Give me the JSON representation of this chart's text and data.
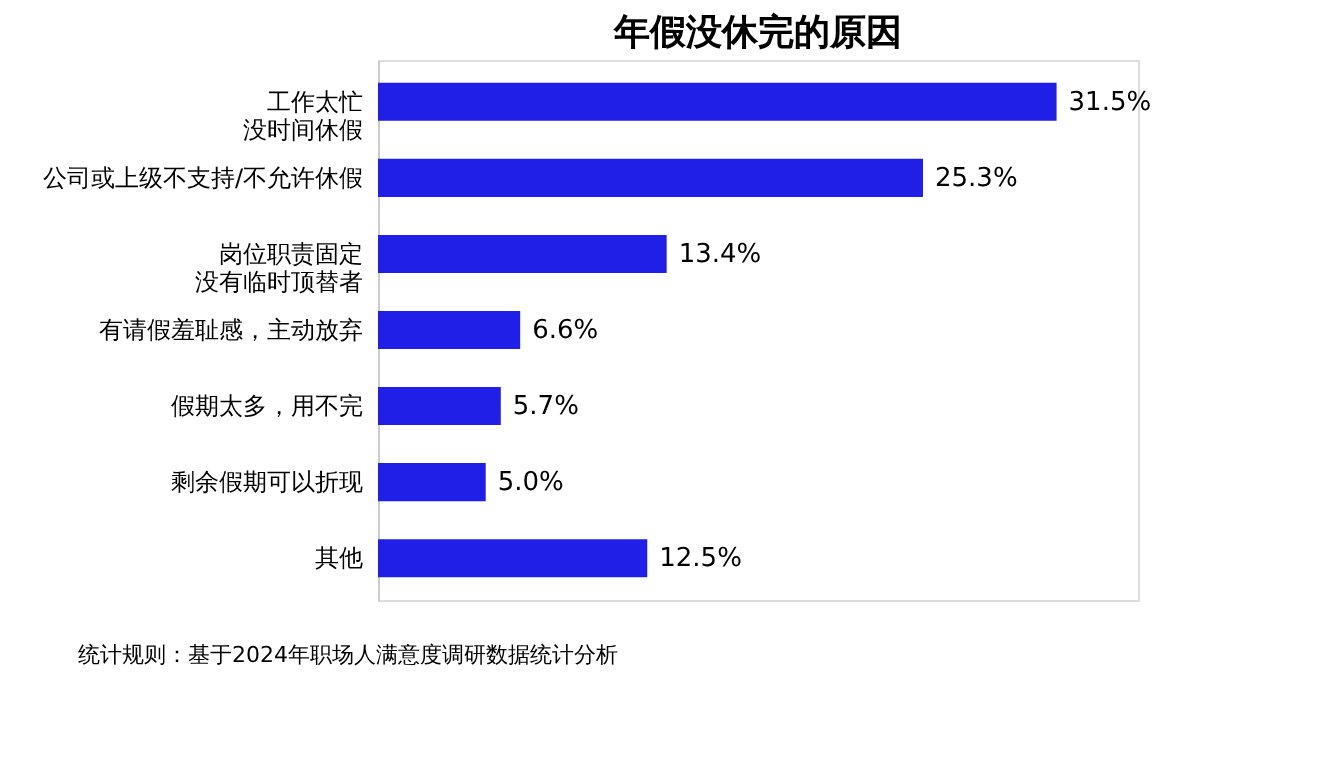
{
  "chart_data": {
    "type": "bar",
    "orientation": "horizontal",
    "title": "年假没休完的原因",
    "categories": [
      "工作太忙没时间休假",
      "公司或上级不支持/不允许休假",
      "岗位职责固定没有临时顶替者",
      "有请假羞耻感，主动放弃",
      "假期太多，用不完",
      "剩余假期可以折现",
      "其他"
    ],
    "values": [
      31.5,
      25.3,
      13.4,
      6.6,
      5.7,
      5.0,
      12.5
    ],
    "value_labels": [
      "31.5%",
      "25.3%",
      "13.4%",
      "6.6%",
      "5.7%",
      "5.0%",
      "12.5%"
    ],
    "color": "#1f1fe8",
    "grid": false,
    "annotations": [
      "统计规则：基于2024年职场人满意度调研数据统计分析"
    ]
  }
}
